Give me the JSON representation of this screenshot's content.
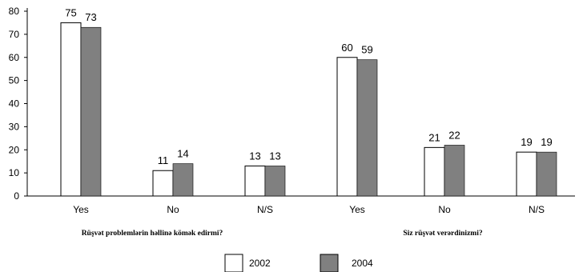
{
  "chart_data": {
    "type": "bar",
    "ylim": [
      0,
      80
    ],
    "yticks": [
      0,
      10,
      20,
      30,
      40,
      50,
      60,
      70,
      80
    ],
    "grid": false,
    "legend_position": "bottom",
    "categories": [
      "Yes",
      "No",
      "N/S",
      "Yes",
      "No",
      "N/S"
    ],
    "groups": [
      {
        "label": "Rüşvət problemlərin həllinə kömək edirmi?",
        "categories": [
          0,
          1,
          2
        ]
      },
      {
        "label": "Siz rüşvət verərdinizmi?",
        "categories": [
          3,
          4,
          5
        ]
      }
    ],
    "series": [
      {
        "name": "2002",
        "values": [
          75,
          11,
          13,
          60,
          21,
          19
        ],
        "color": "#ffffff"
      },
      {
        "name": "2004",
        "values": [
          73,
          14,
          13,
          59,
          22,
          19
        ],
        "color": "#808080"
      }
    ]
  }
}
